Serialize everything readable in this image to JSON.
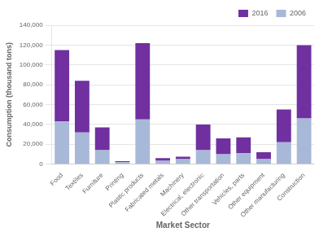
{
  "chart_data": {
    "type": "bar",
    "xlabel": "Market Sector",
    "ylabel": "Consumption (thousand tons)",
    "categories": [
      "Food",
      "Textiles",
      "Furniture",
      "Printing",
      "Plastic products",
      "Fabricated metals",
      "Machinery",
      "Electrical, electronic",
      "Other transportation",
      "Vehicles, parts",
      "Other equipment",
      "Other manufacturing",
      "Construction"
    ],
    "series": [
      {
        "name": "2006",
        "color": "#a8b8d8",
        "values": [
          43000,
          32000,
          14000,
          2000,
          45000,
          3500,
          5000,
          14000,
          10000,
          11000,
          5000,
          22000,
          46000
        ]
      },
      {
        "name": "2016",
        "color": "#7030a0",
        "values": [
          72000,
          52000,
          23000,
          1000,
          77000,
          2500,
          2500,
          26000,
          16000,
          16000,
          7000,
          33000,
          74000
        ]
      }
    ],
    "stacked": true,
    "ylim": [
      0,
      140000
    ],
    "yticks": [
      0,
      {
        "value": 20000,
        "label": "20,000"
      },
      {
        "value": 40000,
        "label": "40,000"
      },
      {
        "value": 60000,
        "label": "60,000"
      },
      {
        "value": 80000,
        "label": "80,000"
      },
      {
        "value": 100000,
        "label": "100,000"
      },
      {
        "value": 120000,
        "label": "120,000"
      },
      {
        "value": 140000,
        "label": "140,000"
      }
    ],
    "grid": true,
    "legend": "upper right"
  }
}
